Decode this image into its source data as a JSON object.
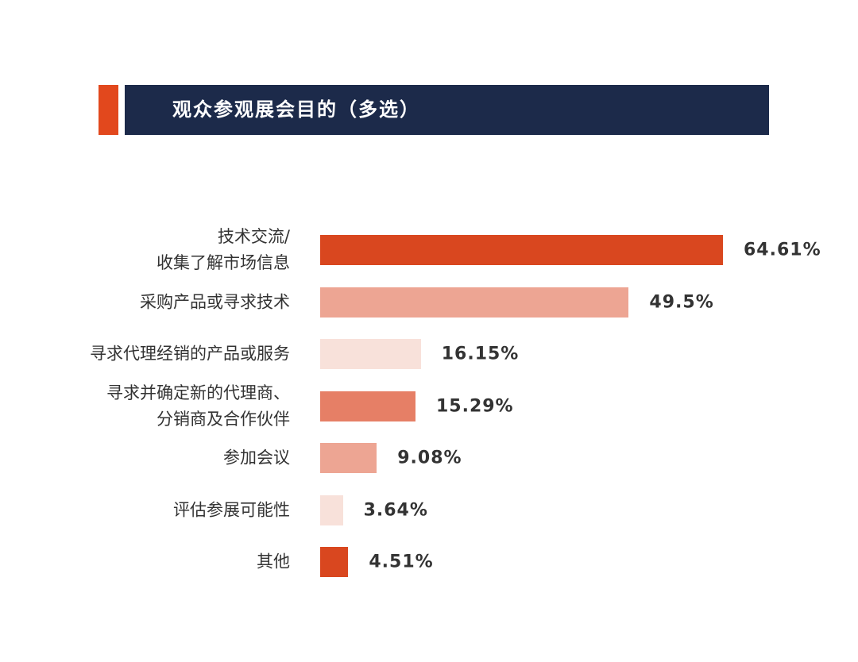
{
  "chart_data": {
    "type": "hbar",
    "title": "观众参观展会目的（多选）",
    "categories": [
      "技术交流/\n收集了解市场信息",
      "采购产品或寻求技术",
      "寻求代理经销的产品或服务",
      "寻求并确定新的代理商、\n分销商及合作伙伴",
      "参加会议",
      "评估参展可能性",
      "其他"
    ],
    "values": [
      64.61,
      49.5,
      16.15,
      15.29,
      9.08,
      3.64,
      4.51
    ],
    "value_labels": [
      "64.61%",
      "49.5%",
      "16.15%",
      "15.29%",
      "9.08%",
      "3.64%",
      "4.51%"
    ],
    "colors": [
      "#d9471f",
      "#eda593",
      "#f8e1da",
      "#e67f66",
      "#eda593",
      "#f8e1da",
      "#d9471f"
    ]
  }
}
